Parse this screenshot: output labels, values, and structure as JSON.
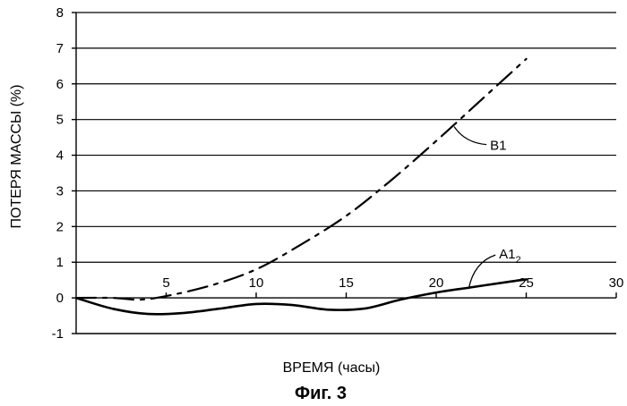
{
  "figure_caption": "Фиг. 3",
  "chart_data": {
    "type": "line",
    "xlabel": "ВРЕМЯ (часы)",
    "ylabel": "ПОТЕРЯ МАССЫ (%)",
    "xlim": [
      0,
      30
    ],
    "ylim": [
      -1,
      8
    ],
    "x_ticks": [
      5,
      10,
      15,
      20,
      25,
      30
    ],
    "y_ticks": [
      8,
      7,
      6,
      5,
      4,
      3,
      2,
      1,
      0,
      -1
    ],
    "grid": "horizontal",
    "series": [
      {
        "name": "B1",
        "label_main": "B1",
        "label_sub": "",
        "style": "dash-dot",
        "x": [
          0,
          2,
          3.5,
          5,
          7.5,
          10,
          12.5,
          15,
          17.5,
          20,
          22.5,
          25
        ],
        "y": [
          0,
          0,
          -0.05,
          0.05,
          0.35,
          0.8,
          1.5,
          2.3,
          3.3,
          4.4,
          5.55,
          6.7
        ]
      },
      {
        "name": "A1₂",
        "label_main": "A1",
        "label_sub": "2",
        "style": "solid",
        "x": [
          0,
          2,
          4,
          6,
          8,
          10,
          12,
          14,
          16,
          18,
          20,
          22,
          24,
          25
        ],
        "y": [
          0,
          -0.3,
          -0.45,
          -0.42,
          -0.3,
          -0.17,
          -0.2,
          -0.33,
          -0.3,
          -0.05,
          0.15,
          0.3,
          0.45,
          0.52
        ]
      }
    ]
  }
}
